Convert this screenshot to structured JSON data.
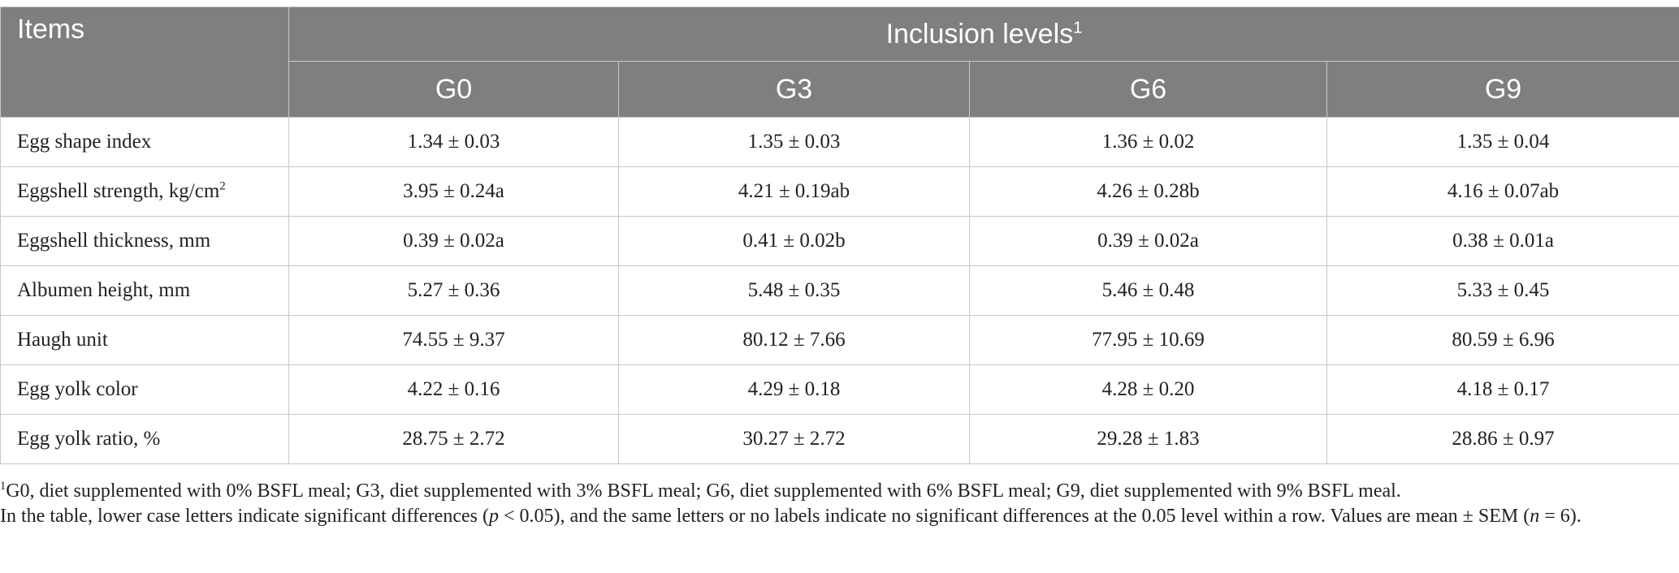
{
  "header": {
    "items_label": "Items",
    "group_label": "Inclusion levels",
    "group_sup": "1",
    "columns": [
      "G0",
      "G3",
      "G6",
      "G9"
    ]
  },
  "rows": [
    {
      "label": "Egg shape index",
      "label_sup": "",
      "values": [
        "1.34 ± 0.03",
        "1.35 ± 0.03",
        "1.36 ± 0.02",
        "1.35 ± 0.04"
      ]
    },
    {
      "label": "Eggshell strength, kg/cm",
      "label_sup": "2",
      "values": [
        "3.95 ± 0.24a",
        "4.21 ± 0.19ab",
        "4.26 ± 0.28b",
        "4.16 ± 0.07ab"
      ]
    },
    {
      "label": "Eggshell thickness, mm",
      "label_sup": "",
      "values": [
        "0.39 ± 0.02a",
        "0.41 ± 0.02b",
        "0.39 ± 0.02a",
        "0.38 ± 0.01a"
      ]
    },
    {
      "label": "Albumen height, mm",
      "label_sup": "",
      "values": [
        "5.27 ± 0.36",
        "5.48 ± 0.35",
        "5.46 ± 0.48",
        "5.33 ± 0.45"
      ]
    },
    {
      "label": "Haugh unit",
      "label_sup": "",
      "values": [
        "74.55 ± 9.37",
        "80.12 ± 7.66",
        "77.95 ± 10.69",
        "80.59 ± 6.96"
      ]
    },
    {
      "label": "Egg yolk color",
      "label_sup": "",
      "values": [
        "4.22 ± 0.16",
        "4.29 ± 0.18",
        "4.28 ± 0.20",
        "4.18 ± 0.17"
      ]
    },
    {
      "label": "Egg yolk ratio, %",
      "label_sup": "",
      "values": [
        "28.75 ± 2.72",
        "30.27 ± 2.72",
        "29.28 ± 1.83",
        "28.86 ± 0.97"
      ]
    }
  ],
  "footnotes": {
    "note1_sup": "1",
    "note1": "G0, diet supplemented with 0% BSFL meal; G3, diet supplemented with 3% BSFL meal; G6, diet supplemented with 6% BSFL meal; G9, diet supplemented with 9% BSFL meal.",
    "note2_a": "In the table, lower case letters indicate significant differences (",
    "note2_p": "p",
    "note2_b": " < 0.05), and the same letters or no labels indicate no significant differences at the 0.05 level within a row. Values are mean ± SEM (",
    "note2_n": "n",
    "note2_c": " = 6)."
  }
}
